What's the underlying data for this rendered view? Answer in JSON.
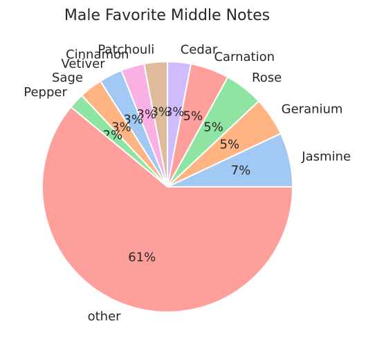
{
  "chart_data": {
    "type": "pie",
    "title": "Male Favorite Middle Notes",
    "start_angle": 0,
    "direction": "counterclockwise",
    "slices": [
      {
        "label": "Jasmine",
        "value": 7,
        "pct_label": "7%",
        "color": "#a1c9f4"
      },
      {
        "label": "Geranium",
        "value": 5,
        "pct_label": "5%",
        "color": "#ffb482"
      },
      {
        "label": "Rose",
        "value": 5,
        "pct_label": "5%",
        "color": "#8de5a1"
      },
      {
        "label": "Carnation",
        "value": 5,
        "pct_label": "5%",
        "color": "#ff9f9b"
      },
      {
        "label": "Cedar",
        "value": 3,
        "pct_label": "3%",
        "color": "#d0bbff"
      },
      {
        "label": "Patchouli",
        "value": 3,
        "pct_label": "3%",
        "color": "#debb9b"
      },
      {
        "label": "Cinnamon",
        "value": 3,
        "pct_label": "3%",
        "color": "#fab0e4"
      },
      {
        "label": "Vetiver",
        "value": 3,
        "pct_label": "3%",
        "color": "#a1c9f4"
      },
      {
        "label": "Sage",
        "value": 3,
        "pct_label": "3%",
        "color": "#ffb482"
      },
      {
        "label": "Pepper",
        "value": 2,
        "pct_label": "2%",
        "color": "#8de5a1"
      },
      {
        "label": "other",
        "value": 61,
        "pct_label": "61%",
        "color": "#ff9f9b"
      }
    ]
  }
}
